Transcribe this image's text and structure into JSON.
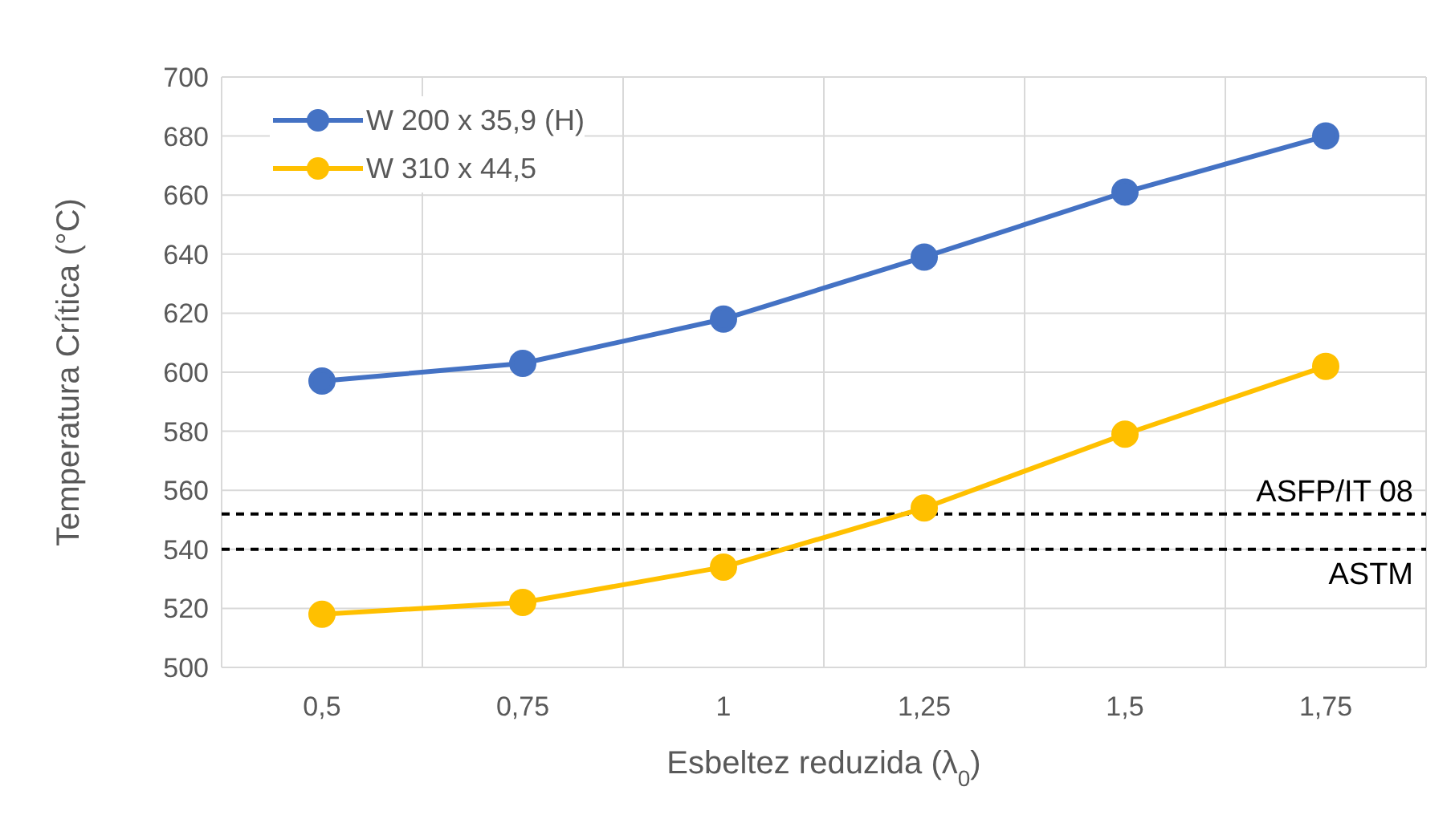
{
  "chart_data": {
    "type": "line",
    "xlabel": "Esbeltez reduzida (λ$_{0}$)",
    "ylabel": "Temperatura Crítica (°C)",
    "categories": [
      "0,5",
      "0,75",
      "1",
      "1,25",
      "1,5",
      "1,75"
    ],
    "series": [
      {
        "name": "W 200 x 35,9 (H)",
        "color": "#4472c4",
        "values": [
          597,
          603,
          618,
          639,
          661,
          680
        ]
      },
      {
        "name": "W 310 x 44,5",
        "color": "#ffc000",
        "values": [
          518,
          522,
          534,
          554,
          579,
          602
        ]
      }
    ],
    "ylim": [
      500,
      700
    ],
    "yticks": [
      500,
      520,
      540,
      560,
      580,
      600,
      620,
      640,
      660,
      680,
      700
    ],
    "ref_lines": [
      {
        "axis": "y",
        "value": 552,
        "label": "ASFP/IT 08",
        "color": "#000000",
        "line_style": "dashed"
      },
      {
        "axis": "y",
        "value": 540,
        "label": "ASTM",
        "color": "#000000",
        "line_style": "dashed"
      }
    ],
    "grid": true,
    "legend": "top left",
    "marker": "circle",
    "line_style": "solid"
  }
}
